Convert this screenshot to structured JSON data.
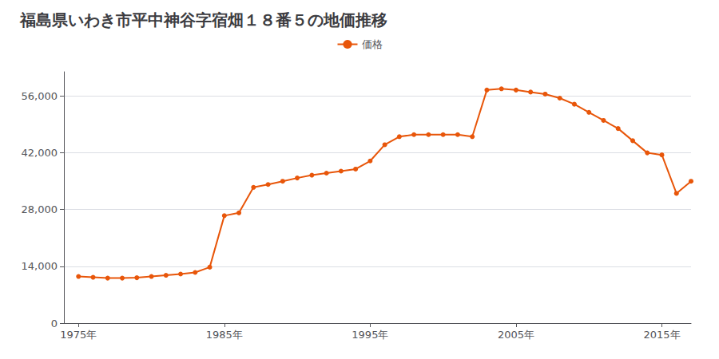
{
  "chart_data": {
    "type": "line",
    "title": "福島県いわき市平中神谷字宿畑１８番５の地価推移",
    "x": [
      1975,
      1976,
      1977,
      1978,
      1979,
      1980,
      1981,
      1982,
      1983,
      1984,
      1985,
      1986,
      1987,
      1988,
      1989,
      1990,
      1991,
      1992,
      1993,
      1994,
      1995,
      1996,
      1997,
      1998,
      1999,
      2000,
      2001,
      2002,
      2003,
      2004,
      2005,
      2006,
      2007,
      2008,
      2009,
      2010,
      2011,
      2012,
      2013,
      2014,
      2015,
      2016,
      2017
    ],
    "series": [
      {
        "name": "価格",
        "color": "#e8560a",
        "marker": "circle",
        "values": [
          11500,
          11300,
          11100,
          11100,
          11200,
          11500,
          11800,
          12100,
          12500,
          13800,
          26500,
          27200,
          33500,
          34200,
          35000,
          35800,
          36500,
          37000,
          37500,
          38000,
          40000,
          44000,
          46000,
          46500,
          46500,
          46500,
          46500,
          46000,
          57500,
          57800,
          57500,
          57000,
          56500,
          55500,
          54000,
          52000,
          50000,
          48000,
          45000,
          42000,
          41500,
          32000,
          35000
        ]
      }
    ],
    "xlim": [
      1974,
      2017
    ],
    "xticks": [
      {
        "value": 1975,
        "label": "1975年"
      },
      {
        "value": 1985,
        "label": "1985年"
      },
      {
        "value": 1995,
        "label": "1995年"
      },
      {
        "value": 2005,
        "label": "2005年"
      },
      {
        "value": 2015,
        "label": "2015年"
      }
    ],
    "ylim": [
      0,
      62000
    ],
    "yticks": [
      0,
      {
        "value": 14000,
        "label": "14,000"
      },
      {
        "value": 28000,
        "label": "28,000"
      },
      {
        "value": 42000,
        "label": "42,000"
      },
      {
        "value": 56000,
        "label": "56,000"
      }
    ],
    "grid": true,
    "legend": "top"
  }
}
